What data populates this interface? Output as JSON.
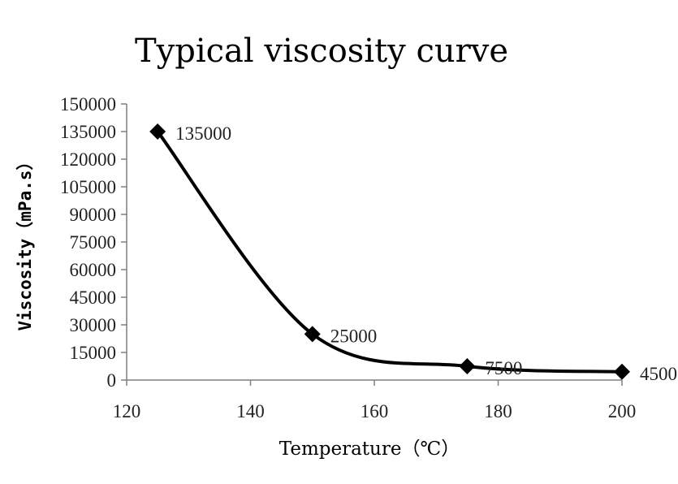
{
  "chart_data": {
    "type": "line",
    "title": "Typical viscosity curve",
    "xlabel": "Temperature（℃）",
    "ylabel": "Viscosity（mPa.s）",
    "x": [
      125,
      150,
      175,
      200
    ],
    "series": [
      {
        "values": [
          135000,
          25000,
          7500,
          4500
        ],
        "labels": [
          "135000",
          "25000",
          "7500",
          "4500"
        ]
      }
    ],
    "xlim": [
      120,
      200
    ],
    "ylim": [
      0,
      150000
    ],
    "xticks": [
      120,
      140,
      160,
      180,
      200
    ],
    "xtick_labels": [
      "120",
      "140",
      "160",
      "180",
      "200"
    ],
    "yticks": [
      0,
      15000,
      30000,
      45000,
      60000,
      75000,
      90000,
      105000,
      120000,
      135000,
      150000
    ],
    "ytick_labels": [
      "0",
      "15000",
      "30000",
      "45000",
      "60000",
      "75000",
      "90000",
      "105000",
      "120000",
      "135000",
      "150000"
    ],
    "grid": false,
    "legend": "none",
    "marker": "diamond",
    "line_color": "#000000",
    "smooth": true
  }
}
